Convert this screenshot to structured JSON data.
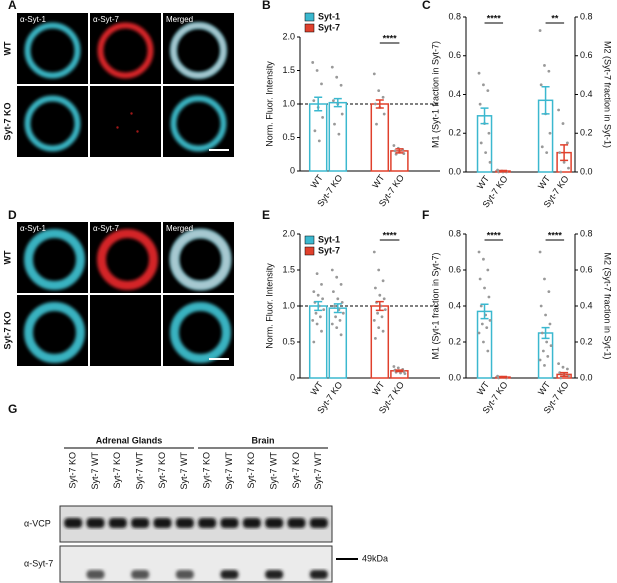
{
  "figure": {
    "panel_labels": [
      "A",
      "B",
      "C",
      "D",
      "E",
      "F",
      "G"
    ],
    "imaging": [
      {
        "columns": [
          "α-Syt-1",
          "α-Syt-7",
          "Merged"
        ],
        "rows": [
          "WT",
          "Syt-7 KO"
        ]
      },
      {
        "columns": [
          "α-Syt-1",
          "α-Syt-7",
          "Merged"
        ],
        "rows": [
          "WT",
          "Syt-7 KO"
        ]
      }
    ],
    "blot": {
      "groups": [
        "Adrenal Glands",
        "Brain"
      ],
      "lanes": [
        "Syt-7 KO",
        "Syt-7 WT",
        "Syt-7 KO",
        "Syt-7 WT",
        "Syt-7 KO",
        "Syt-7 WT",
        "Syt-7 KO",
        "Syt-7 WT",
        "Syt-7 KO",
        "Syt-7 WT",
        "Syt-7 KO",
        "Syt-7 WT"
      ],
      "rows": [
        "α-VCP",
        "α-Syt-7"
      ],
      "marker": "49kDa"
    }
  },
  "chart_data": [
    {
      "type": "bar",
      "y_label": "Norm. Fluor. Intensity",
      "categories": [
        "WT",
        "Syt-7 KO",
        "WT",
        "Syt-7 KO"
      ],
      "series": [
        {
          "name": "Syt-1",
          "color": "#3bb8cf",
          "values": [
            1.0,
            1.02,
            null,
            null
          ],
          "errors": [
            0.1,
            0.06,
            null,
            null
          ],
          "points": [
            [
              1.62,
              1.5,
              1.3,
              1.05,
              0.95,
              0.8,
              0.6,
              0.45
            ],
            [
              1.55,
              1.4,
              1.28,
              1.05,
              1.0,
              0.85,
              0.7,
              0.55
            ],
            null,
            null
          ]
        },
        {
          "name": "Syt-7",
          "color": "#e0402c",
          "values": [
            null,
            null,
            1.0,
            0.3
          ],
          "errors": [
            null,
            null,
            0.06,
            0.03
          ],
          "points": [
            null,
            null,
            [
              1.45,
              1.2,
              1.1,
              1.0,
              0.95,
              0.85,
              0.7
            ],
            [
              0.38,
              0.34,
              0.32,
              0.3,
              0.28,
              0.26,
              0.25
            ]
          ]
        }
      ],
      "hline": 1.0,
      "significance": [
        null,
        "****"
      ],
      "ylim": [
        0,
        2.0
      ],
      "yticks": [
        0,
        0.5,
        {
          "value": 1.0,
          "label": "1.0"
        },
        1.5,
        {
          "value": 2.0,
          "label": "2.0"
        }
      ]
    },
    {
      "type": "bar",
      "y_label": "M1 (Syt-1 fraction in Syt-7)",
      "y2_label": "M2 (Syt-7 fraction in Syt-1)",
      "categories": [
        "WT",
        "Syt-7 KO",
        "WT",
        "Syt-7 KO"
      ],
      "series": [
        {
          "color": "#3bb8cf",
          "values": [
            0.29,
            null,
            0.37,
            null
          ],
          "errors": [
            0.04,
            null,
            0.07,
            null
          ],
          "points": [
            [
              0.51,
              0.45,
              0.42,
              0.35,
              0.25,
              0.2,
              0.15,
              0.1,
              0.05
            ],
            null,
            [
              0.73,
              0.55,
              0.52,
              0.45,
              0.3,
              0.2,
              0.13,
              0.1
            ],
            null
          ]
        },
        {
          "color": "#e0402c",
          "values": [
            null,
            0.005,
            null,
            0.1
          ],
          "errors": [
            null,
            0.003,
            null,
            0.04
          ],
          "points": [
            null,
            [
              0.01,
              0.005,
              0,
              0,
              0
            ],
            null,
            [
              0.32,
              0.25,
              0.15,
              0.1,
              0.05,
              0.02,
              0
            ]
          ]
        }
      ],
      "significance": [
        "****",
        "**"
      ],
      "ylim": [
        0,
        0.8
      ],
      "yticks": [
        {
          "value": 0,
          "label": "0.0"
        },
        0.2,
        0.4,
        0.6,
        0.8
      ],
      "y2lim": [
        0,
        0.8
      ],
      "y2ticks": [
        {
          "value": 0,
          "label": "0.0"
        },
        0.2,
        0.4,
        0.6,
        0.8
      ]
    },
    {
      "type": "bar",
      "y_label": "Norm. Fluor. Intensity",
      "categories": [
        "WT",
        "Syt-7 KO",
        "WT",
        "Syt-7 KO"
      ],
      "series": [
        {
          "name": "Syt-1",
          "color": "#3bb8cf",
          "values": [
            1.0,
            0.97,
            null,
            null
          ],
          "errors": [
            0.06,
            0.06,
            null,
            null
          ],
          "points": [
            [
              1.75,
              1.45,
              1.3,
              1.2,
              1.15,
              1.1,
              1.05,
              1.0,
              0.95,
              0.9,
              0.85,
              0.8,
              0.75,
              0.65,
              0.5
            ],
            [
              1.5,
              1.4,
              1.3,
              1.2,
              1.1,
              1.05,
              1.0,
              0.95,
              0.9,
              0.85,
              0.8,
              0.75,
              0.7,
              0.6
            ],
            null,
            null
          ]
        },
        {
          "name": "Syt-7",
          "color": "#e0402c",
          "values": [
            null,
            null,
            1.0,
            0.1
          ],
          "errors": [
            null,
            null,
            0.06,
            0.01
          ],
          "points": [
            null,
            null,
            [
              1.75,
              1.5,
              1.35,
              1.25,
              1.15,
              1.1,
              1.05,
              1.0,
              0.95,
              0.9,
              0.85,
              0.8,
              0.7,
              0.65,
              0.55
            ],
            [
              0.16,
              0.14,
              0.12,
              0.11,
              0.1,
              0.09,
              0.08,
              0.07,
              0.06
            ]
          ]
        }
      ],
      "hline": 1.0,
      "significance": [
        null,
        "****"
      ],
      "ylim": [
        0,
        2.0
      ],
      "yticks": [
        0,
        0.5,
        {
          "value": 1.0,
          "label": "1.0"
        },
        1.5,
        {
          "value": 2.0,
          "label": "2.0"
        }
      ]
    },
    {
      "type": "bar",
      "y_label": "M1 (Syt-1 fraction in Syt-7)",
      "y2_label": "M2 (Syt-7 fraction in Syt-1)",
      "categories": [
        "WT",
        "Syt-7 KO",
        "WT",
        "Syt-7 KO"
      ],
      "series": [
        {
          "color": "#3bb8cf",
          "values": [
            0.37,
            null,
            0.25,
            null
          ],
          "errors": [
            0.04,
            null,
            0.03,
            null
          ],
          "points": [
            [
              0.7,
              0.66,
              0.6,
              0.55,
              0.5,
              0.45,
              0.4,
              0.35,
              0.32,
              0.3,
              0.28,
              0.25,
              0.2,
              0.15
            ],
            null,
            [
              0.7,
              0.55,
              0.48,
              0.4,
              0.35,
              0.3,
              0.25,
              0.2,
              0.18,
              0.15,
              0.12,
              0.1,
              0.07
            ],
            null
          ]
        },
        {
          "color": "#e0402c",
          "values": [
            null,
            0.005,
            null,
            0.02
          ],
          "errors": [
            null,
            0.003,
            null,
            0.01
          ],
          "points": [
            null,
            [
              0.01,
              0.005,
              0,
              0
            ],
            null,
            [
              0.08,
              0.06,
              0.05,
              0.03,
              0.02,
              0.01,
              0
            ]
          ]
        }
      ],
      "significance": [
        "****",
        "****"
      ],
      "ylim": [
        0,
        0.8
      ],
      "yticks": [
        {
          "value": 0,
          "label": "0.0"
        },
        0.2,
        0.4,
        0.6,
        0.8
      ],
      "y2lim": [
        0,
        0.8
      ],
      "y2ticks": [
        {
          "value": 0,
          "label": "0.0"
        },
        0.2,
        0.4,
        0.6,
        0.8
      ]
    }
  ]
}
